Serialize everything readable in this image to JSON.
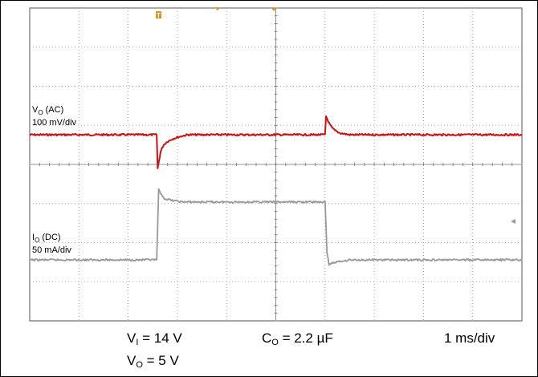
{
  "chart_data": {
    "type": "line",
    "title": "",
    "xlabel": "",
    "ylabel": "",
    "x_scale": "1 ms/div",
    "x_divisions": 10,
    "y_divisions": 8,
    "x_unit": "ms",
    "grid": true,
    "series": [
      {
        "name": "VO (AC)",
        "label_main": "V",
        "label_sub": "O",
        "label_suffix": " (AC)",
        "scale": "100 mV/div",
        "unit": "mV",
        "color": "#cc1111",
        "x": [
          0.0,
          2.58,
          2.6,
          2.63,
          2.66,
          2.72,
          2.8,
          2.9,
          3.0,
          3.2,
          6.0,
          6.02,
          6.08,
          6.13,
          6.2,
          6.3,
          6.5,
          10.0
        ],
        "y": [
          0,
          0,
          -200,
          -150,
          -100,
          -60,
          -40,
          -25,
          -15,
          0,
          0,
          110,
          70,
          45,
          25,
          10,
          0,
          0
        ]
      },
      {
        "name": "IO (DC)",
        "label_main": "I",
        "label_sub": "O",
        "label_suffix": " (DC)",
        "scale": "50 mA/div",
        "unit": "mA",
        "color": "#999999",
        "x": [
          0.0,
          2.58,
          2.62,
          2.66,
          2.75,
          2.9,
          3.1,
          6.0,
          6.04,
          6.08,
          6.15,
          6.3,
          6.5,
          10.0
        ],
        "y": [
          0,
          0,
          46,
          43,
          40,
          39,
          38,
          38,
          5,
          -3,
          -2,
          -1,
          0,
          0
        ]
      }
    ],
    "markers": {
      "trigger": "T"
    },
    "conditions": {
      "vi": {
        "main": "V",
        "sub": "I",
        "rest": " = 14 V"
      },
      "vo": {
        "main": "V",
        "sub": "O",
        "rest": " = 5 V"
      },
      "co": {
        "main": "C",
        "sub": "O",
        "rest": " = 2.2 µF"
      },
      "timebase": "1 ms/div"
    }
  }
}
